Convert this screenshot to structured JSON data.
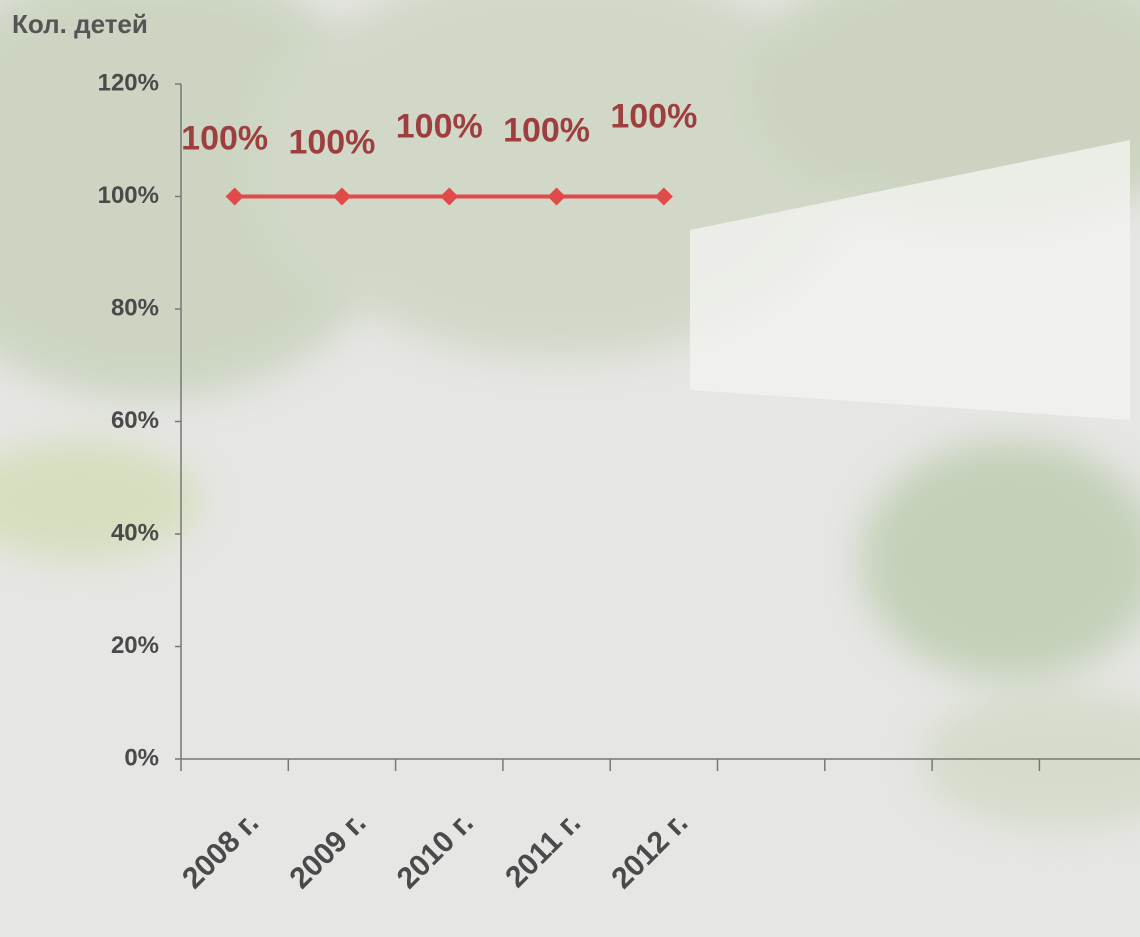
{
  "chart_data": {
    "type": "line",
    "title": "Кол. детей",
    "categories": [
      "2008 г.",
      "2009 г.",
      "2010 г.",
      "2011 г.",
      "2012 г.",
      null,
      null,
      null,
      null
    ],
    "values": [
      100,
      100,
      100,
      100,
      100,
      null,
      null,
      null,
      null
    ],
    "value_labels": [
      "100%",
      "100%",
      "100%",
      "100%",
      "100%",
      null,
      null,
      null,
      null
    ],
    "color": "#e04a4a",
    "ylim": [
      0,
      120
    ],
    "yticks": [
      {
        "value": 0,
        "label": "0%"
      },
      {
        "value": 20,
        "label": "20%"
      },
      {
        "value": 40,
        "label": "40%"
      },
      {
        "value": 60,
        "label": "60%"
      },
      {
        "value": 80,
        "label": "80%"
      },
      {
        "value": 100,
        "label": "100%"
      },
      {
        "value": 120,
        "label": "120%"
      }
    ]
  }
}
